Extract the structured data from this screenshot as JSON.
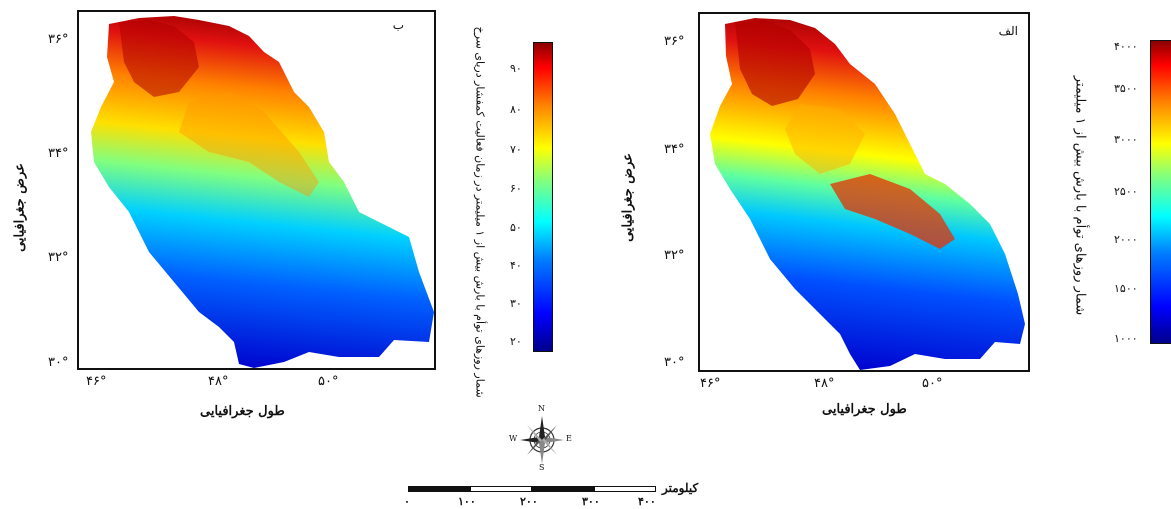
{
  "panel_b": {
    "label": "ب",
    "lat_ticks": [
      "۳۶°",
      "۳۴°",
      "۳۲°",
      "۳۰°"
    ],
    "lon_ticks": [
      "۴۶°",
      "۴۸°",
      "۵۰°"
    ],
    "ylabel": "عرض جغرافیایی",
    "xlabel": "طول جغرافیایی",
    "colorbar": {
      "ticks": [
        "۹۰",
        "۸۰",
        "۷۰",
        "۶۰",
        "۵۰",
        "۴۰",
        "۳۰",
        "۲۰"
      ],
      "title": "شمار روزهای توأم با بارش بیش از ۱ میلیمتر در زمان فعالیت کمفشار دریای سرخ"
    }
  },
  "panel_a": {
    "label": "الف",
    "lat_ticks": [
      "۳۶°",
      "۳۴°",
      "۳۲°",
      "۳۰°"
    ],
    "lon_ticks": [
      "۴۶°",
      "۴۸°",
      "۵۰°"
    ],
    "ylabel": "عرض جغرافیایی",
    "xlabel": "طول جغرافیایی",
    "colorbar": {
      "ticks": [
        "۴۰۰۰",
        "۳۵۰۰",
        "۳۰۰۰",
        "۲۵۰۰",
        "۲۰۰۰",
        "۱۵۰۰",
        "۱۰۰۰"
      ],
      "title": "شمار روزهای توأم با بارش بیش از ۱ میلیمتر"
    }
  },
  "compass": {
    "n": "N",
    "s": "S",
    "e": "E",
    "w": "W"
  },
  "scale": {
    "unit": "کیلومتر",
    "ticks": [
      "۰",
      "۱۰۰",
      "۲۰۰",
      "۳۰۰",
      "۴۰۰"
    ]
  },
  "colors": {
    "jet_stops": [
      "#00008b",
      "#0000ff",
      "#0080ff",
      "#00ffff",
      "#80ff80",
      "#ffff00",
      "#ff8000",
      "#ff0000",
      "#8b0000"
    ]
  }
}
